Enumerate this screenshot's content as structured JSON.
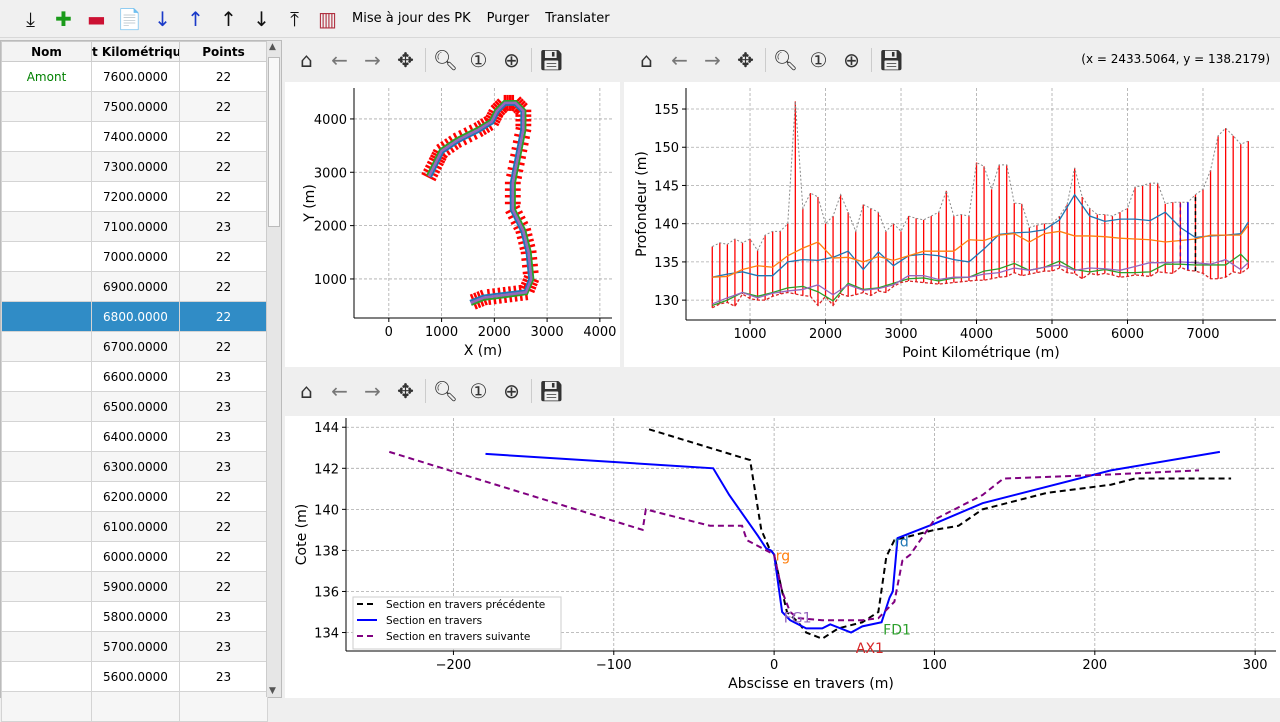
{
  "toolbar": {
    "icons": [
      "import-icon",
      "add-icon",
      "remove-icon",
      "edit-icon",
      "sort-ascending-icon",
      "sort-descending-icon",
      "move-up-icon",
      "move-down-icon",
      "export-icon",
      "generate-sections-icon"
    ],
    "buttons": [
      "Mise à jour des PK",
      "Purger",
      "Translater"
    ]
  },
  "table": {
    "headers": [
      "Nom",
      "t Kilométrique",
      "Points"
    ],
    "rows": [
      [
        "Amont",
        "7600.0000",
        "22"
      ],
      [
        "",
        "7500.0000",
        "22"
      ],
      [
        "",
        "7400.0000",
        "22"
      ],
      [
        "",
        "7300.0000",
        "22"
      ],
      [
        "",
        "7200.0000",
        "22"
      ],
      [
        "",
        "7100.0000",
        "23"
      ],
      [
        "",
        "7000.0000",
        "22"
      ],
      [
        "",
        "6900.0000",
        "22"
      ],
      [
        "",
        "6800.0000",
        "22"
      ],
      [
        "",
        "6700.0000",
        "22"
      ],
      [
        "",
        "6600.0000",
        "23"
      ],
      [
        "",
        "6500.0000",
        "23"
      ],
      [
        "",
        "6400.0000",
        "23"
      ],
      [
        "",
        "6300.0000",
        "23"
      ],
      [
        "",
        "6200.0000",
        "22"
      ],
      [
        "",
        "6100.0000",
        "22"
      ],
      [
        "",
        "6000.0000",
        "22"
      ],
      [
        "",
        "5900.0000",
        "22"
      ],
      [
        "",
        "5800.0000",
        "23"
      ],
      [
        "",
        "5700.0000",
        "23"
      ],
      [
        "",
        "5600.0000",
        "23"
      ],
      [
        "",
        "",
        " "
      ]
    ],
    "selected_row": 8,
    "name_color": "#008000",
    "selected_color": "#308cc6"
  },
  "nav_icons": [
    "home-icon",
    "back-icon",
    "forward-icon",
    "pan-icon",
    "zoom-icon",
    "zoom-1-icon",
    "zoom-fit-icon",
    "save-icon"
  ],
  "coords": "(x = 2433.5064,   y = 138.2179)",
  "chart_data": [
    {
      "type": "line",
      "xlabel": "X (m)",
      "ylabel": "Y (m)",
      "xlim": [
        -660,
        4230
      ],
      "ylim": [
        268,
        4580
      ],
      "xticks": [
        0,
        1000,
        2000,
        3000,
        4000
      ],
      "yticks": [
        1000,
        2000,
        3000,
        4000
      ],
      "grid": true,
      "centerline": [
        [
          760,
          2920
        ],
        [
          900,
          3200
        ],
        [
          1000,
          3400
        ],
        [
          1300,
          3600
        ],
        [
          1700,
          3800
        ],
        [
          1950,
          3950
        ],
        [
          2050,
          4150
        ],
        [
          2200,
          4300
        ],
        [
          2400,
          4300
        ],
        [
          2550,
          4150
        ],
        [
          2550,
          3800
        ],
        [
          2450,
          3300
        ],
        [
          2350,
          2800
        ],
        [
          2350,
          2300
        ],
        [
          2550,
          1900
        ],
        [
          2650,
          1500
        ],
        [
          2700,
          1000
        ],
        [
          2600,
          750
        ],
        [
          2200,
          700
        ],
        [
          1800,
          650
        ],
        [
          1550,
          550
        ]
      ],
      "section_half_width": 150,
      "colors": {
        "sections": "#ff0000",
        "axis": "#9467bd",
        "left": "#2ca02c",
        "right": "#1f77b4"
      }
    },
    {
      "type": "line",
      "xlabel": "Point Kilométrique (m)",
      "ylabel": "Profondeur (m)",
      "xlim": [
        152,
        7967
      ],
      "ylim": [
        127.4,
        157.75
      ],
      "xticks": [
        1000,
        2000,
        3000,
        4000,
        5000,
        6000,
        7000
      ],
      "yticks": [
        130,
        135,
        140,
        145,
        150,
        155
      ],
      "grid": true,
      "pk": [
        500,
        600,
        700,
        800,
        900,
        1000,
        1100,
        1200,
        1300,
        1400,
        1500,
        1600,
        1700,
        1800,
        1900,
        2000,
        2100,
        2200,
        2300,
        2400,
        2500,
        2600,
        2700,
        2800,
        2900,
        3000,
        3100,
        3200,
        3300,
        3400,
        3500,
        3600,
        3700,
        3800,
        3900,
        4000,
        4100,
        4200,
        4300,
        4400,
        4500,
        4600,
        4700,
        4800,
        4900,
        5000,
        5100,
        5200,
        5300,
        5400,
        5500,
        5600,
        5700,
        5800,
        5900,
        6000,
        6100,
        6200,
        6300,
        6400,
        6500,
        6600,
        6700,
        6800,
        6900,
        7000,
        7100,
        7200,
        7300,
        7400,
        7500,
        7600
      ],
      "max": [
        137,
        137.5,
        137.3,
        138,
        137.5,
        138,
        136.5,
        138.5,
        139,
        139,
        140,
        156,
        142,
        144,
        143.5,
        140,
        141,
        143.8,
        141.5,
        139,
        142.5,
        142,
        141.5,
        139,
        140,
        139,
        141,
        140.7,
        140.5,
        141,
        141.5,
        144.3,
        141,
        141.2,
        141,
        148,
        147.5,
        144.5,
        147.7,
        147.7,
        142.7,
        142.6,
        139.5,
        139.8,
        140,
        140,
        141,
        142.5,
        147.3,
        143.5,
        142,
        141.2,
        141.2,
        141,
        141.5,
        142,
        144.8,
        145,
        145.3,
        145.3,
        142.6,
        142.8,
        142.8,
        142.8,
        143.8,
        144.5,
        147,
        151.5,
        152.5,
        151.5,
        150.4,
        150.8
      ],
      "min": [
        129,
        129.5,
        129.7,
        129.2,
        130.8,
        130.2,
        130,
        130,
        130.5,
        130.8,
        131,
        130.8,
        130.6,
        130.5,
        129.3,
        130.5,
        129.3,
        130.8,
        130.5,
        130.7,
        131,
        130.6,
        131.2,
        131,
        131.8,
        132.3,
        132.5,
        132.4,
        132.3,
        132.2,
        132.1,
        132.2,
        132.3,
        132.4,
        132.5,
        132.6,
        132.6,
        132.8,
        133,
        133.1,
        133.6,
        133.2,
        133.4,
        133.6,
        133.8,
        133.8,
        134.2,
        133.6,
        133.5,
        132.8,
        133.5,
        133.3,
        133.5,
        133.3,
        133,
        133.1,
        133.3,
        133.2,
        133.1,
        133.7,
        133.6,
        133.5,
        134.3,
        133.9,
        133.8,
        133.5,
        132.8,
        132.8,
        133,
        133.7,
        133.5,
        134.2
      ],
      "line_pk": [
        500,
        700,
        900,
        1100,
        1300,
        1500,
        1700,
        1900,
        2100,
        2300,
        2500,
        2700,
        2900,
        3100,
        3300,
        3500,
        3700,
        3900,
        4100,
        4300,
        4500,
        4700,
        4900,
        5100,
        5300,
        5500,
        5700,
        5900,
        6100,
        6300,
        6500,
        6700,
        6900,
        7100,
        7300,
        7500,
        7600
      ],
      "series": [
        {
          "color": "#1f77b4",
          "values": [
            133,
            133.4,
            133.7,
            133.2,
            133.2,
            135,
            135.3,
            135.2,
            135.6,
            136.4,
            134,
            136.3,
            134.5,
            135.8,
            136,
            135.8,
            135.3,
            135,
            136.7,
            138.6,
            138.8,
            138.9,
            139.2,
            140.5,
            143.8,
            141,
            140.3,
            140.6,
            140.6,
            140.4,
            141.5,
            139.5,
            138.2,
            138.4,
            138.5,
            138.7,
            140.2
          ]
        },
        {
          "color": "#ff7f0e",
          "values": [
            133,
            133.1,
            134,
            134.5,
            134.3,
            135.8,
            136.8,
            137.6,
            135.5,
            135.6,
            135,
            135.7,
            135.2,
            135.8,
            136.4,
            136.4,
            136.4,
            137.9,
            137.8,
            138.5,
            138.7,
            137.6,
            138.7,
            139,
            138.4,
            138.4,
            138.3,
            138.1,
            138,
            137.9,
            137.6,
            137.8,
            138,
            138.5,
            138.5,
            138.5,
            139.8
          ]
        },
        {
          "color": "#2ca02c",
          "values": [
            129.3,
            130,
            131,
            130.5,
            131,
            131.6,
            131.8,
            131.1,
            129.9,
            132.2,
            131.4,
            131.6,
            132.2,
            132.8,
            132.9,
            132.5,
            132.9,
            133,
            133.8,
            134.1,
            134.8,
            133.9,
            134.3,
            135.1,
            134,
            133.7,
            134,
            133.6,
            133.6,
            133.7,
            134.7,
            134.7,
            134.6,
            134.6,
            134.6,
            136,
            135
          ]
        },
        {
          "color": "#9467bd",
          "values": [
            129.5,
            130.3,
            131,
            130.3,
            130.9,
            131.2,
            131.4,
            132,
            130.7,
            132,
            131.3,
            131.5,
            132,
            133.2,
            133.2,
            132.7,
            133,
            133,
            133.4,
            133.6,
            134.2,
            133.9,
            134.3,
            134.6,
            133.9,
            134.2,
            134.1,
            133.9,
            134.4,
            134.9,
            134.9,
            135,
            134.9,
            134.7,
            135.3,
            134,
            134.9
          ]
        }
      ],
      "markers": [
        {
          "pk": 6700,
          "range": [
            134.8,
            142.8
          ],
          "color": "#800080",
          "style": "dashed"
        },
        {
          "pk": 6800,
          "range": [
            134,
            142.8
          ],
          "color": "#0000ff",
          "style": "solid"
        },
        {
          "pk": 6900,
          "range": [
            133.8,
            143.8
          ],
          "color": "#000000",
          "style": "dashed"
        }
      ]
    },
    {
      "type": "line",
      "xlabel": "Abscisse en travers (m)",
      "ylabel": "Cote (m)",
      "xlim": [
        -267,
        313
      ],
      "ylim": [
        133.1,
        144.45
      ],
      "xticks": [
        -200,
        -100,
        0,
        100,
        200,
        300
      ],
      "xtick_labels": [
        "−200",
        "−100",
        "0",
        "100",
        "200",
        "300"
      ],
      "yticks": [
        134,
        136,
        138,
        140,
        142,
        144
      ],
      "grid": true,
      "legend": "lower-left",
      "series": [
        {
          "name": "Section en travers précédente",
          "color": "#000000",
          "style": "dashed",
          "points": [
            [
              -78,
              143.9
            ],
            [
              -15,
              142.4
            ],
            [
              -8,
              139
            ],
            [
              -3,
              138.1
            ],
            [
              0,
              137.8
            ],
            [
              5,
              136
            ],
            [
              8,
              135
            ],
            [
              15,
              134.5
            ],
            [
              20,
              134
            ],
            [
              30,
              133.7
            ],
            [
              40,
              134.2
            ],
            [
              55,
              134.5
            ],
            [
              65,
              135
            ],
            [
              70,
              137.7
            ],
            [
              75,
              138.5
            ],
            [
              100,
              139
            ],
            [
              115,
              139.2
            ],
            [
              130,
              140
            ],
            [
              170,
              140.8
            ],
            [
              210,
              141.2
            ],
            [
              225,
              141.5
            ],
            [
              285,
              141.5
            ]
          ]
        },
        {
          "name": "Section en travers",
          "color": "#0000ff",
          "style": "solid",
          "points": [
            [
              -180,
              142.7
            ],
            [
              -38,
              142
            ],
            [
              -28,
              140.7
            ],
            [
              -10,
              138.7
            ],
            [
              -5,
              138.1
            ],
            [
              -2,
              138
            ],
            [
              0,
              137.8
            ],
            [
              5,
              135
            ],
            [
              10,
              134.6
            ],
            [
              20,
              134.2
            ],
            [
              30,
              134.2
            ],
            [
              35,
              134.4
            ],
            [
              48,
              134
            ],
            [
              55,
              134.3
            ],
            [
              67,
              134.5
            ],
            [
              72,
              135.7
            ],
            [
              74,
              136
            ],
            [
              77,
              138.6
            ],
            [
              100,
              139.3
            ],
            [
              130,
              140.3
            ],
            [
              210,
              141.9
            ],
            [
              278,
              142.8
            ]
          ]
        },
        {
          "name": "Section en travers suivante",
          "color": "#800080",
          "style": "dashed",
          "points": [
            [
              -240,
              142.8
            ],
            [
              -82,
              139
            ],
            [
              -80,
              140
            ],
            [
              -40,
              139.2
            ],
            [
              -20,
              139.2
            ],
            [
              -17,
              138.5
            ],
            [
              0,
              137.8
            ],
            [
              5,
              136
            ],
            [
              10,
              135
            ],
            [
              15,
              134.7
            ],
            [
              30,
              134.6
            ],
            [
              55,
              134.6
            ],
            [
              65,
              134.7
            ],
            [
              75,
              135.5
            ],
            [
              80,
              137.5
            ],
            [
              85,
              137.8
            ],
            [
              100,
              139.5
            ],
            [
              130,
              140.7
            ],
            [
              143,
              141.5
            ],
            [
              210,
              141.7
            ],
            [
              265,
              141.9
            ]
          ]
        }
      ],
      "annotations": [
        {
          "text": "rg",
          "x": 1,
          "y": 137.5,
          "color": "#ff7f0e"
        },
        {
          "text": "rd",
          "x": 75,
          "y": 138.2,
          "color": "#1f77b4"
        },
        {
          "text": "FG1",
          "x": 6,
          "y": 134.5,
          "color": "#9467bd"
        },
        {
          "text": "FD1",
          "x": 68,
          "y": 133.9,
          "color": "#2ca02c"
        },
        {
          "text": "AX1",
          "x": 51,
          "y": 133.0,
          "color": "#d62728"
        }
      ]
    }
  ]
}
